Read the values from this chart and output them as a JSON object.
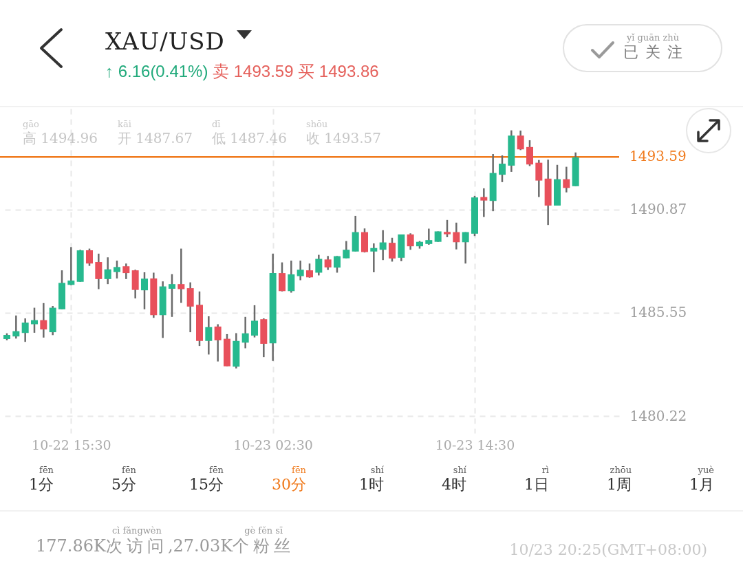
{
  "chart_data": {
    "type": "candlestick",
    "title": "XAU/USD",
    "subtitle": "↑ 6.16(0.41%)",
    "annotations": [
      "卖 1493.59 买 1493.86",
      "yǐ guān zhù",
      "已关注",
      "gāo",
      "高 1494.96",
      "kāi",
      "开 1487.67",
      "dī",
      "低 1487.46",
      "shōu",
      "收 1493.57",
      "fēn",
      "1分",
      "fēn",
      "5分",
      "fēn",
      "15分",
      "fēn",
      "30分",
      "shí",
      "1时",
      "shí",
      "4时",
      "rì",
      "1日",
      "zhōu",
      "1周",
      "yuè",
      "1月",
      "177.86K",
      "cì fǎngwèn",
      "次访问",
      ",27.03K",
      "gè fěn sī",
      "个粉丝",
      "10/23 20:25(GMT+08:00)"
    ],
    "categories": [
      null,
      null,
      null,
      null,
      null,
      null,
      null,
      "10-22 15:30",
      null,
      null,
      null,
      null,
      null,
      null,
      null,
      null,
      null,
      null,
      null,
      null,
      null,
      null,
      null,
      null,
      null,
      null,
      null,
      null,
      null,
      "10-23 02:30",
      null,
      null,
      null,
      null,
      null,
      null,
      null,
      null,
      null,
      null,
      null,
      null,
      null,
      null,
      null,
      null,
      null,
      null,
      null,
      null,
      null,
      "10-23 14:30",
      null,
      null,
      null,
      null,
      null,
      null,
      null,
      null,
      null,
      null,
      null
    ],
    "ohlc": [
      [
        1484.2,
        1484.49,
        1484.13,
        1484.41
      ],
      [
        1484.33,
        1485.41,
        1484.22,
        1484.6
      ],
      [
        1484.51,
        1485.26,
        1484.05,
        1485.04
      ],
      [
        1484.96,
        1485.81,
        1484.52,
        1485.17
      ],
      [
        1485.17,
        1486.05,
        1484.27,
        1484.69
      ],
      [
        1484.55,
        1485.9,
        1484.4,
        1485.81
      ],
      [
        1485.73,
        1487.74,
        1485.73,
        1487.09
      ],
      [
        1486.99,
        1488.94,
        1486.97,
        1487.21
      ],
      [
        1487.15,
        1488.8,
        1487.15,
        1488.77
      ],
      [
        1488.77,
        1488.86,
        1487.97,
        1488.09
      ],
      [
        1488.17,
        1488.6,
        1486.77,
        1487.29
      ],
      [
        1487.29,
        1488.41,
        1487.03,
        1487.79
      ],
      [
        1487.65,
        1488.24,
        1487.32,
        1487.91
      ],
      [
        1487.95,
        1488.09,
        1487.29,
        1487.6
      ],
      [
        1487.74,
        1487.77,
        1486.29,
        1486.73
      ],
      [
        1486.71,
        1487.64,
        1485.73,
        1487.31
      ],
      [
        1487.32,
        1487.62,
        1485.29,
        1485.43
      ],
      [
        1485.43,
        1487.17,
        1484.25,
        1486.91
      ],
      [
        1486.79,
        1487.54,
        1485.34,
        1487.03
      ],
      [
        1487.03,
        1488.86,
        1486.06,
        1486.77
      ],
      [
        1486.82,
        1487.12,
        1484.55,
        1485.87
      ],
      [
        1485.96,
        1486.65,
        1483.84,
        1484.1
      ],
      [
        1484.1,
        1485.37,
        1483.4,
        1484.81
      ],
      [
        1484.84,
        1484.96,
        1483.04,
        1484.13
      ],
      [
        1484.21,
        1484.45,
        1482.79,
        1482.79
      ],
      [
        1482.77,
        1484.5,
        1482.68,
        1484.1
      ],
      [
        1484.01,
        1485.34,
        1483.72,
        1484.49
      ],
      [
        1484.37,
        1485.94,
        1484.28,
        1485.14
      ],
      [
        1485.22,
        1485.26,
        1483.27,
        1483.95
      ],
      [
        1483.98,
        1488.6,
        1483.07,
        1487.6
      ],
      [
        1487.6,
        1488.15,
        1486.65,
        1486.67
      ],
      [
        1486.67,
        1488.24,
        1486.59,
        1487.53
      ],
      [
        1487.44,
        1488.24,
        1487.23,
        1487.77
      ],
      [
        1487.74,
        1488.09,
        1487.36,
        1487.38
      ],
      [
        1487.62,
        1488.54,
        1487.48,
        1488.33
      ],
      [
        1488.3,
        1488.48,
        1487.76,
        1487.89
      ],
      [
        1487.88,
        1488.48,
        1487.62,
        1488.47
      ],
      [
        1488.36,
        1489.25,
        1488.36,
        1488.8
      ],
      [
        1488.71,
        1490.55,
        1488.71,
        1489.71
      ],
      [
        1489.71,
        1489.9,
        1488.66,
        1488.68
      ],
      [
        1488.71,
        1489.13,
        1487.64,
        1488.89
      ],
      [
        1488.8,
        1489.81,
        1488.27,
        1489.18
      ],
      [
        1489.16,
        1489.42,
        1488.19,
        1488.35
      ],
      [
        1488.39,
        1489.59,
        1488.21,
        1489.59
      ],
      [
        1489.59,
        1489.65,
        1488.8,
        1488.98
      ],
      [
        1488.98,
        1489.25,
        1488.86,
        1489.21
      ],
      [
        1489.1,
        1489.89,
        1489.06,
        1489.3
      ],
      [
        1489.21,
        1489.75,
        1489.21,
        1489.75
      ],
      [
        1489.72,
        1490.34,
        1489.45,
        1489.6
      ],
      [
        1489.71,
        1490.2,
        1488.82,
        1489.19
      ],
      [
        1489.19,
        1489.71,
        1488.09,
        1489.71
      ],
      [
        1489.63,
        1491.58,
        1489.51,
        1491.5
      ],
      [
        1491.52,
        1491.97,
        1490.49,
        1491.34
      ],
      [
        1491.32,
        1493.74,
        1490.79,
        1492.76
      ],
      [
        1492.67,
        1493.67,
        1492.29,
        1493.24
      ],
      [
        1493.14,
        1494.96,
        1492.82,
        1494.69
      ],
      [
        1494.69,
        1494.95,
        1493.94,
        1493.98
      ],
      [
        1494.1,
        1494.45,
        1493.12,
        1493.2
      ],
      [
        1493.29,
        1493.43,
        1491.52,
        1492.37
      ],
      [
        1492.47,
        1493.45,
        1490.08,
        1491.08
      ],
      [
        1491.08,
        1493.18,
        1491.08,
        1492.44
      ],
      [
        1492.44,
        1493.08,
        1491.76,
        1491.99
      ],
      [
        1492.08,
        1493.82,
        1492.08,
        1493.57
      ]
    ],
    "colors": [
      "#27b98e",
      "#27b98e",
      "#27b98e",
      "#27b98e",
      "#e8505b",
      "#27b98e",
      "#27b98e",
      "#27b98e",
      "#27b98e",
      "#e8505b",
      "#e8505b",
      "#27b98e",
      "#27b98e",
      "#e8505b",
      "#e8505b",
      "#27b98e",
      "#e8505b",
      "#27b98e",
      "#27b98e",
      "#e8505b",
      "#e8505b",
      "#e8505b",
      "#27b98e",
      "#e8505b",
      "#e8505b",
      "#27b98e",
      "#27b98e",
      "#27b98e",
      "#e8505b",
      "#27b98e",
      "#e8505b",
      "#27b98e",
      "#27b98e",
      "#e8505b",
      "#27b98e",
      "#e8505b",
      "#27b98e",
      "#27b98e",
      "#27b98e",
      "#e8505b",
      "#27b98e",
      "#27b98e",
      "#e8505b",
      "#27b98e",
      "#e8505b",
      "#27b98e",
      "#27b98e",
      "#27b98e",
      "#e8505b",
      "#e8505b",
      "#27b98e",
      "#27b98e",
      "#e8505b",
      "#27b98e",
      "#27b98e",
      "#27b98e",
      "#e8505b",
      "#e8505b",
      "#e8505b",
      "#e8505b",
      "#27b98e",
      "#e8505b",
      "#27b98e"
    ],
    "ylim": [
      1479.34,
      1496.08
    ],
    "yticks": [
      1480.22,
      1485.55,
      1490.87
    ],
    "grid": true,
    "ref_lines": [
      {
        "axis": "y",
        "value": 1493.59,
        "label": "1493.59",
        "color": "#f07a1c"
      }
    ]
  }
}
